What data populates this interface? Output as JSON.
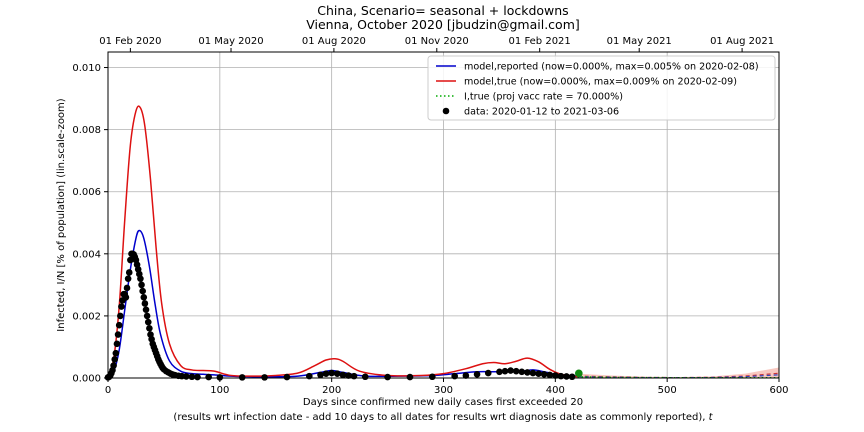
{
  "chart_data": {
    "type": "line",
    "title": "China, Scenario= seasonal + lockdowns",
    "subtitle": "Vienna, October 2020 [jbudzin@gmail.com]",
    "xlabel": "Days since confirmed new daily cases first exceeded 20",
    "xlabel2_prefix": "(results wrt infection date - add 10 days to all dates for results wrt diagnosis date as commonly reported), ",
    "xlabel2_var": "t",
    "ylabel": "Infected, I/N [% of population] (lin.scale-zoom)",
    "xlim": [
      0,
      600
    ],
    "ylim": [
      0,
      0.0105
    ],
    "grid": true,
    "legend_position": "top-right",
    "x_ticks": [
      {
        "value": 0,
        "label": "0"
      },
      {
        "value": 100,
        "label": "100"
      },
      {
        "value": 200,
        "label": "200"
      },
      {
        "value": 300,
        "label": "300"
      },
      {
        "value": 400,
        "label": "400"
      },
      {
        "value": 500,
        "label": "500"
      },
      {
        "value": 600,
        "label": "600"
      }
    ],
    "y_ticks": [
      {
        "value": 0,
        "label": "0.000"
      },
      {
        "value": 0.002,
        "label": "0.002"
      },
      {
        "value": 0.004,
        "label": "0.004"
      },
      {
        "value": 0.006,
        "label": "0.006"
      },
      {
        "value": 0.008,
        "label": "0.008"
      },
      {
        "value": 0.01,
        "label": "0.010"
      }
    ],
    "top_ticks": [
      {
        "value": 20,
        "label": "01 Feb 2020"
      },
      {
        "value": 110,
        "label": "01 May 2020"
      },
      {
        "value": 202,
        "label": "01 Aug 2020"
      },
      {
        "value": 294,
        "label": "01 Nov 2020"
      },
      {
        "value": 386,
        "label": "01 Feb 2021"
      },
      {
        "value": 475,
        "label": "01 May 2021"
      },
      {
        "value": 567,
        "label": "01 Aug 2021"
      }
    ],
    "series": [
      {
        "name": "model,reported (now=0.000%, max=0.005% on 2020-02-08)",
        "color": "#0000cc",
        "style": "solid",
        "x": [
          0,
          5,
          10,
          15,
          20,
          25,
          28,
          32,
          37,
          42,
          47,
          55,
          65,
          75,
          85,
          95,
          110,
          130,
          150,
          170,
          190,
          200,
          210,
          230,
          260,
          290,
          310,
          330,
          350,
          370,
          380,
          390,
          400,
          410,
          420
        ],
        "y": [
          2e-05,
          0.0002,
          0.0009,
          0.0022,
          0.0035,
          0.0045,
          0.00475,
          0.0045,
          0.0036,
          0.0024,
          0.0014,
          0.00055,
          0.00022,
          0.00014,
          0.00012,
          0.0001,
          6e-05,
          4e-05,
          4e-05,
          6e-05,
          0.00018,
          0.00024,
          0.00018,
          6e-05,
          6e-05,
          8e-05,
          0.00014,
          0.0002,
          0.0002,
          0.00022,
          0.00026,
          0.0002,
          0.00012,
          8e-05,
          6e-05
        ]
      },
      {
        "name": "model,true (now=0.000%, max=0.009% on 2020-02-09)",
        "color": "#dd1111",
        "style": "solid",
        "x": [
          0,
          5,
          10,
          15,
          20,
          25,
          29,
          33,
          38,
          43,
          48,
          55,
          65,
          75,
          85,
          95,
          110,
          130,
          150,
          170,
          185,
          195,
          203,
          210,
          225,
          250,
          280,
          300,
          320,
          335,
          345,
          355,
          365,
          375,
          385,
          395,
          405,
          415,
          420
        ],
        "y": [
          4e-05,
          0.0006,
          0.0023,
          0.0051,
          0.0075,
          0.0086,
          0.0087,
          0.0081,
          0.0064,
          0.0042,
          0.0024,
          0.0011,
          0.0004,
          0.00026,
          0.00024,
          0.00022,
          8e-05,
          6e-05,
          8e-05,
          0.00016,
          0.0004,
          0.00058,
          0.00062,
          0.00054,
          0.00022,
          8e-05,
          8e-05,
          0.00014,
          0.0003,
          0.00046,
          0.0005,
          0.00046,
          0.00054,
          0.00064,
          0.00052,
          0.00028,
          0.00012,
          6e-05,
          4e-05
        ]
      },
      {
        "name": "I,true (proj vacc rate = 70.000%)",
        "color": "#00aa00",
        "style": "dotted",
        "x": [
          420,
          450,
          500,
          550,
          600
        ],
        "y": [
          4e-05,
          2e-05,
          1e-05,
          1e-05,
          1e-05
        ]
      }
    ],
    "projection": {
      "x": [
        420,
        450,
        480,
        510,
        540,
        570,
        600
      ],
      "y": [
        0.00014,
        8e-05,
        4e-05,
        3e-05,
        5e-05,
        0.00014,
        0.00034
      ],
      "band_color": "#f8c8c0"
    },
    "data_points": {
      "name": "data: 2020-01-12 to 2021-03-06",
      "x": [
        0,
        1,
        2,
        3,
        4,
        5,
        6,
        7,
        8,
        9,
        10,
        11,
        12,
        13,
        14,
        15,
        16,
        17,
        18,
        19,
        20,
        21,
        22,
        23,
        24,
        25,
        26,
        27,
        28,
        29,
        30,
        31,
        32,
        33,
        34,
        35,
        36,
        37,
        38,
        39,
        40,
        41,
        42,
        43,
        44,
        45,
        46,
        47,
        48,
        49,
        50,
        52,
        54,
        56,
        58,
        60,
        63,
        66,
        70,
        75,
        80,
        90,
        100,
        120,
        140,
        160,
        180,
        190,
        195,
        200,
        205,
        210,
        215,
        220,
        230,
        250,
        270,
        290,
        310,
        320,
        330,
        340,
        350,
        355,
        360,
        365,
        370,
        375,
        380,
        385,
        390,
        395,
        400,
        405,
        410,
        415
      ],
      "y": [
        2e-05,
        4e-05,
        8e-05,
        0.00015,
        0.00025,
        0.0004,
        0.0006,
        0.0008,
        0.0011,
        0.0014,
        0.0017,
        0.002,
        0.0023,
        0.0025,
        0.0027,
        0.0027,
        0.0026,
        0.0029,
        0.0032,
        0.0034,
        0.0038,
        0.004,
        0.004,
        0.00398,
        0.0039,
        0.0038,
        0.00365,
        0.0035,
        0.00335,
        0.0032,
        0.003,
        0.0028,
        0.0026,
        0.0024,
        0.0022,
        0.002,
        0.0018,
        0.0016,
        0.0014,
        0.00125,
        0.0011,
        0.001,
        0.0009,
        0.0008,
        0.0007,
        0.0006,
        0.00052,
        0.00045,
        0.00038,
        0.00032,
        0.00028,
        0.00022,
        0.00018,
        0.00014,
        0.00011,
        9e-05,
        7e-05,
        6e-05,
        5e-05,
        4e-05,
        3e-05,
        3e-05,
        2e-05,
        2e-05,
        2e-05,
        3e-05,
        6e-05,
        0.0001,
        0.00014,
        0.00016,
        0.00014,
        0.0001,
        8e-05,
        6e-05,
        4e-05,
        3e-05,
        3e-05,
        4e-05,
        6e-05,
        8e-05,
        0.00012,
        0.00016,
        0.0002,
        0.00022,
        0.00024,
        0.00022,
        0.0002,
        0.00018,
        0.00016,
        0.00014,
        0.00012,
        0.0001,
        8e-05,
        6e-05,
        5e-05,
        4e-05
      ]
    },
    "current_marker": {
      "x": 421,
      "y": 0.00015,
      "color": "#108810"
    }
  }
}
